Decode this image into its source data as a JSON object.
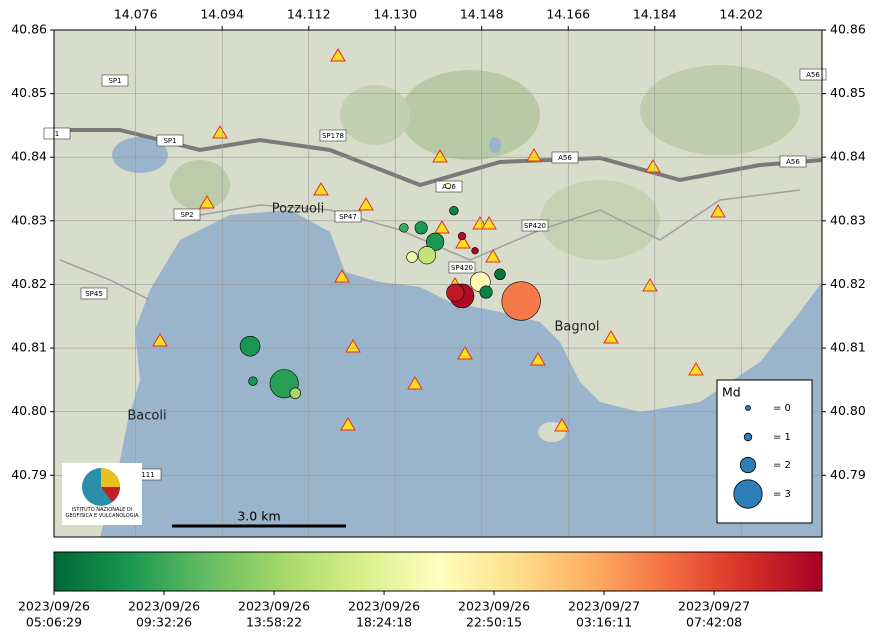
{
  "chart_data": {
    "type": "scatter",
    "xlim": [
      14.059,
      14.2188
    ],
    "ylim": [
      40.7803,
      40.86
    ],
    "xticks": [
      14.076,
      14.094,
      14.112,
      {
        "value": 14.13,
        "label": "14.130"
      },
      14.148,
      14.166,
      14.184,
      14.202
    ],
    "yticks": [
      {
        "value": 40.79,
        "label": "40.79"
      },
      {
        "value": 40.8,
        "label": "40.80"
      },
      40.81,
      40.82,
      40.83,
      40.84,
      40.85,
      40.86
    ],
    "grid": true,
    "events": {
      "lon": [
        14.1562,
        14.1439,
        14.1425,
        14.1477,
        14.1489,
        14.1518,
        14.1383,
        14.1366,
        14.1335,
        14.1354,
        14.1318,
        14.1422,
        14.1439,
        14.1466,
        14.0998,
        14.1069,
        14.1004,
        14.1092,
        14.141
      ],
      "lat": [
        40.8174,
        40.8182,
        40.8187,
        40.8204,
        40.8188,
        40.8216,
        40.8267,
        40.8246,
        40.8243,
        40.8289,
        40.8289,
        40.8316,
        40.8276,
        40.8253,
        40.8103,
        40.8044,
        40.8048,
        40.8029,
        40.8355
      ],
      "md": [
        3.6,
        2.7,
        2.2,
        2.4,
        1.7,
        1.5,
        2.2,
        2.2,
        1.5,
        1.7,
        1.2,
        1.2,
        1.0,
        0.8,
        2.4,
        3.0,
        1.2,
        1.5,
        0.3
      ],
      "time": [
        "2023-09-27T05:15:00",
        "2023-09-27T11:26:00",
        "2023-09-27T10:30:00",
        "2023-09-26T21:12:00",
        "2023-09-26T06:39:00",
        "2023-09-26T06:02:00",
        "2023-09-26T08:12:00",
        "2023-09-26T15:56:00",
        "2023-09-26T19:02:00",
        "2023-09-26T08:20:00",
        "2023-09-26T09:45:00",
        "2023-09-26T06:45:00",
        "2023-09-27T11:07:00",
        "2023-09-27T11:45:00",
        "2023-09-26T08:05:00",
        "2023-09-26T08:49:00",
        "2023-09-26T08:15:00",
        "2023-09-26T14:24:00",
        "2023-09-26T20:35:00"
      ]
    },
    "colorbar": {
      "colormap": "RdYlGn_r",
      "clim": [
        "2023-09-26T05:06:29",
        "2023-09-27T12:03:00"
      ],
      "ticks": [
        {
          "value": "2023-09-26T05:06:29",
          "label": [
            "2023/09/26",
            "05:06:29"
          ]
        },
        {
          "value": "2023-09-26T09:32:26",
          "label": [
            "2023/09/26",
            "09:32:26"
          ]
        },
        {
          "value": "2023-09-26T13:58:22",
          "label": [
            "2023/09/26",
            "13:58:22"
          ]
        },
        {
          "value": "2023-09-26T18:24:18",
          "label": [
            "2023/09/26",
            "18:24:18"
          ]
        },
        {
          "value": "2023-09-26T22:50:15",
          "label": [
            "2023/09/26",
            "22:50:15"
          ]
        },
        {
          "value": "2023-09-27T03:16:11",
          "label": [
            "2023/09/27",
            "03:16:11"
          ]
        },
        {
          "value": "2023-09-27T07:42:08",
          "label": [
            "2023/09/27",
            "07:42:08"
          ]
        }
      ]
    },
    "legend": {
      "title": "Md",
      "entries": [
        {
          "value": 0,
          "label": "= 0"
        },
        {
          "value": 1,
          "label": "= 1"
        },
        {
          "value": 2,
          "label": "= 2"
        },
        {
          "value": 3,
          "label": "= 3"
        }
      ]
    },
    "scale_bar": "3.0 km",
    "place_labels": [
      "Pozzuoli",
      "Bacoli",
      "Bagnol"
    ],
    "road_labels": [
      "SP1",
      "SP1",
      "SP178",
      "SP2",
      "SP47",
      "A56",
      "A56",
      "A56",
      "A56",
      "SP420",
      "SP420",
      "SP45",
      "1",
      "111"
    ],
    "logo_text": "ISTITUTO NAZIONALE DI GEOFISICA E VULCANOLOGIA"
  }
}
